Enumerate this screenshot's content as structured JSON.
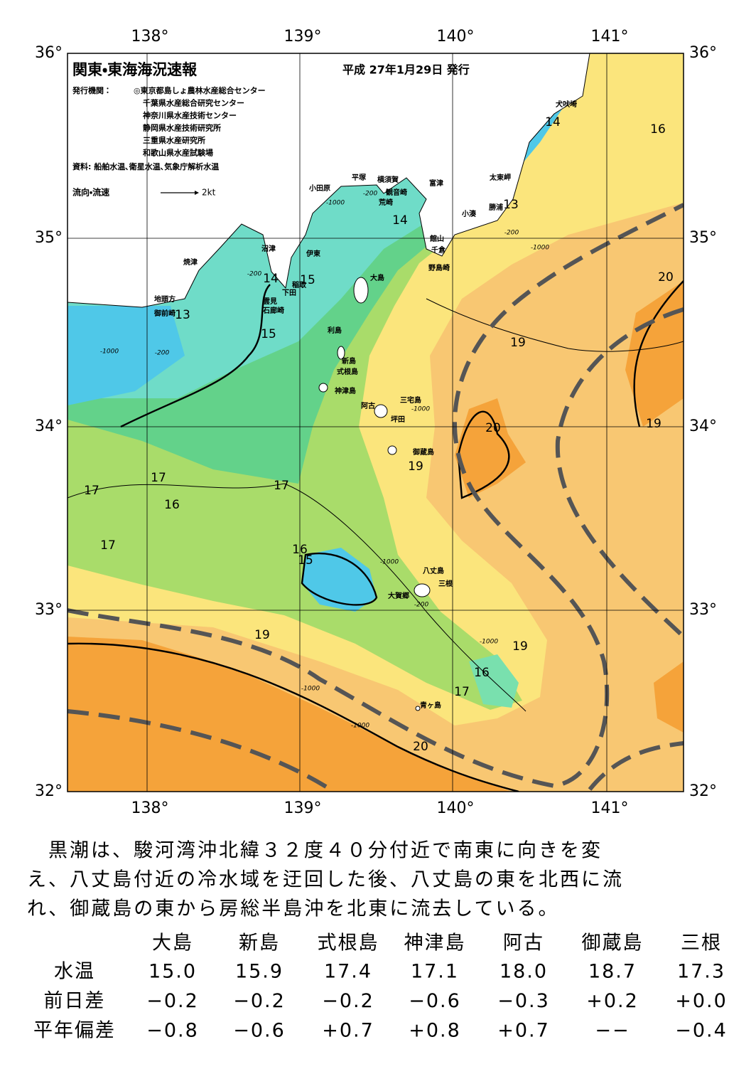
{
  "header": {
    "title": "関東・東海海況速報",
    "date": "平成 27年1月29日 発行"
  },
  "publishers": {
    "label": "発行機関：",
    "items": [
      "◎東京都島しょ農林水産総合センター",
      "千葉県水産総合研究センター",
      "神奈川県水産技術センター",
      "静岡県水産技術研究所",
      "三重県水産研究所",
      "和歌山県水産試験場"
    ]
  },
  "sources": "資料: 船舶水温､衛星水温､気象庁解析水温",
  "legend": {
    "label": "流向・流速",
    "scale": "2kt"
  },
  "map": {
    "lon_labels": [
      "138°",
      "139°",
      "140°",
      "141°"
    ],
    "lat_labels": [
      "36°",
      "35°",
      "34°",
      "33°",
      "32°"
    ],
    "places": [
      "犬吠埼",
      "太東岬",
      "勝浦",
      "小湊",
      "富津",
      "館山",
      "千倉",
      "野島崎",
      "横須賀",
      "観音崎",
      "平塚",
      "荒崎",
      "小田原",
      "沼津",
      "伊東",
      "稲取",
      "下田",
      "雲見",
      "石廊崎",
      "焼津",
      "地頭方",
      "御前崎",
      "大島",
      "利島",
      "新島",
      "式根島",
      "神津島",
      "阿古",
      "三宅島",
      "坪田",
      "御蔵島",
      "八丈島",
      "三根",
      "大賀郷",
      "青ヶ島"
    ],
    "contours": [
      14,
      16,
      13,
      14,
      14,
      15,
      13,
      15,
      20,
      19,
      20,
      19,
      19,
      17,
      17,
      16,
      17,
      17,
      16,
      15,
      19,
      19,
      16,
      17,
      20
    ],
    "depths": [
      "-200",
      "-1000",
      "-200",
      "-1000",
      "-200",
      "-1000",
      "-1000",
      "-200",
      "-1000",
      "-1000",
      "-1000",
      "-1000",
      "-200"
    ]
  },
  "summary": [
    "黒潮は、駿河湾沖北緯３２度４０分付近で南東に向きを変",
    "え、八丈島付近の冷水域を迂回した後、八丈島の東を北西に流",
    "れ、御蔵島の東から房総半島沖を北東に流去している。"
  ],
  "table": {
    "columns": [
      "大島",
      "新島",
      "式根島",
      "神津島",
      "阿古",
      "御蔵島",
      "三根"
    ],
    "rows": [
      {
        "label": "水温",
        "values": [
          "15.0",
          "15.9",
          "17.4",
          "17.1",
          "18.0",
          "18.7",
          "17.3"
        ]
      },
      {
        "label": "前日差",
        "values": [
          "−0.2",
          "−0.2",
          "−0.2",
          "−0.6",
          "−0.3",
          "+0.2",
          "+0.0"
        ]
      },
      {
        "label": "平年偏差",
        "values": [
          "−0.8",
          "−0.6",
          "+0.7",
          "+0.8",
          "+0.7",
          "−−",
          "−0.4"
        ]
      }
    ]
  }
}
